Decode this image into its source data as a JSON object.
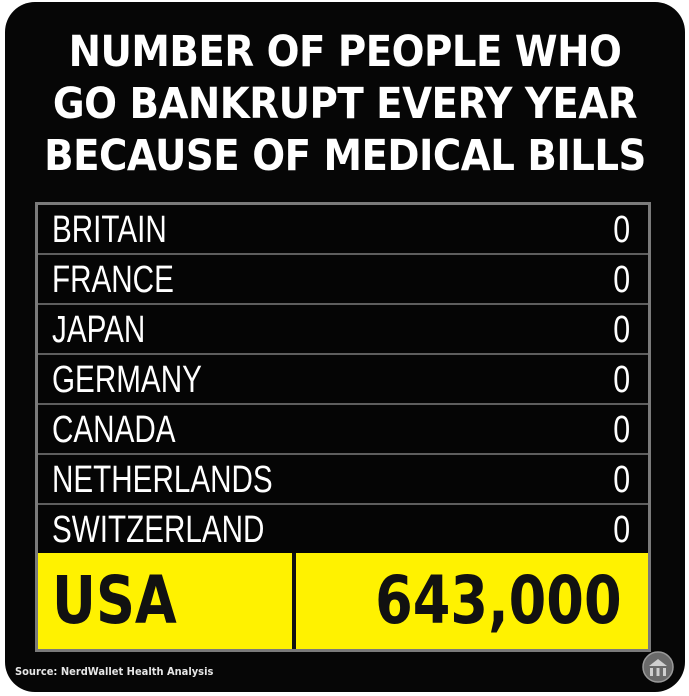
{
  "title_lines": [
    "NUMBER OF PEOPLE WHO",
    "GO BANKRUPT EVERY YEAR",
    "BECAUSE OF MEDICAL BILLS"
  ],
  "source": "Source: NerdWallet Health Analysis",
  "colors": {
    "background": "#060606",
    "highlight": "#fff200",
    "text": "#ffffff",
    "highlight_text": "#111111"
  },
  "chart_data": {
    "type": "table",
    "title": "NUMBER OF PEOPLE WHO GO BANKRUPT EVERY YEAR BECAUSE OF MEDICAL BILLS",
    "categories": [
      "BRITAIN",
      "FRANCE",
      "JAPAN",
      "GERMANY",
      "CANADA",
      "NETHERLANDS",
      "SWITZERLAND",
      "USA"
    ],
    "value_labels": [
      "0",
      "0",
      "0",
      "0",
      "0",
      "0",
      "0",
      "643,000"
    ],
    "values": [
      0,
      0,
      0,
      0,
      0,
      0,
      0,
      643000
    ],
    "highlighted": "USA"
  }
}
